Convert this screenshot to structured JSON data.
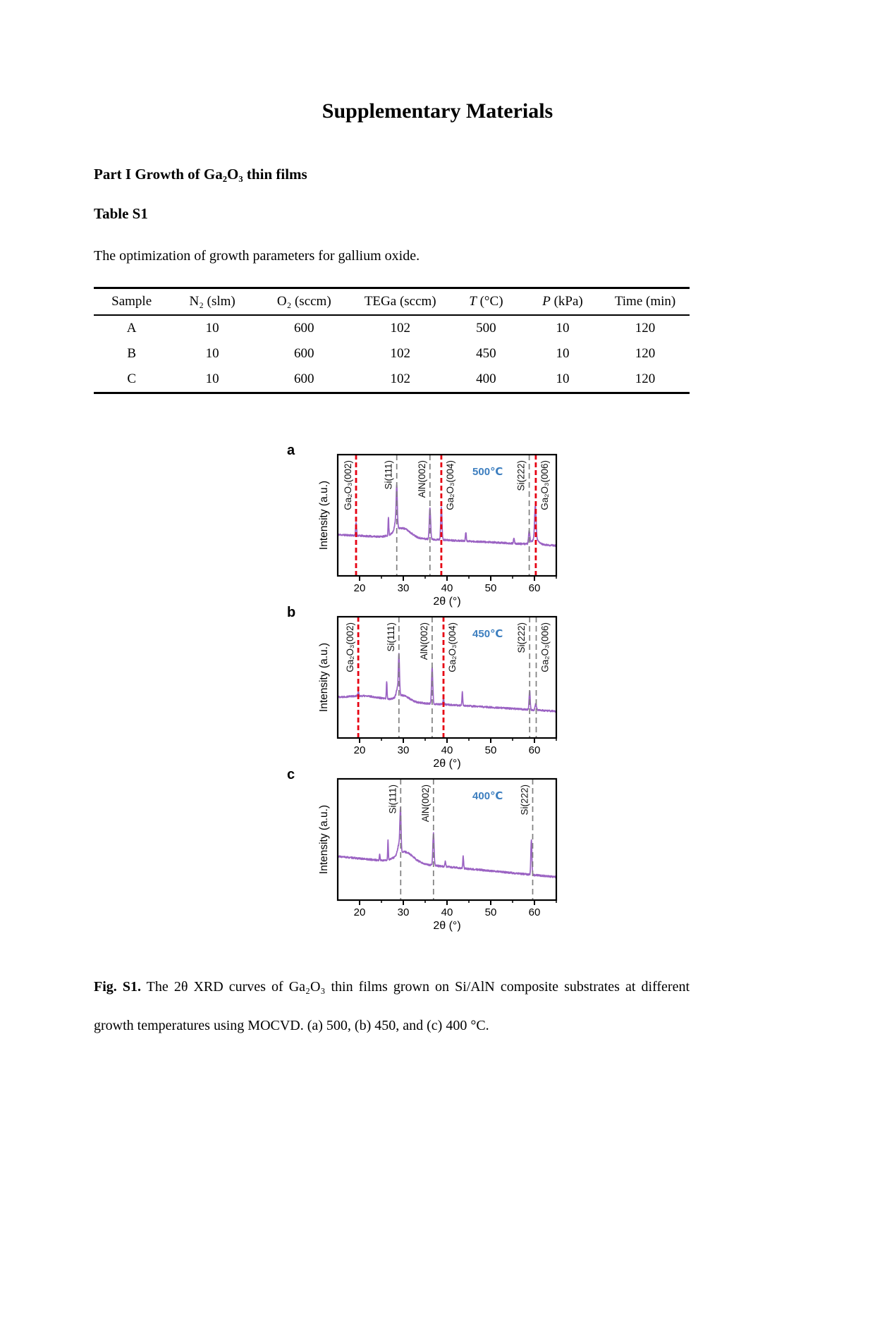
{
  "document": {
    "title": "Supplementary Materials",
    "section_heading": "Part I Growth of Ga₂O₃ thin films",
    "table_title": "Table S1",
    "table_description": "The optimization of growth parameters for gallium oxide.",
    "figure_caption_label": "Fig. S1.",
    "figure_caption_text": "The 2θ XRD curves of Ga₂O₃ thin films grown on Si/AlN composite substrates at different growth temperatures using MOCVD. (a) 500, (b) 450, and (c) 400 °C."
  },
  "table": {
    "headers": [
      {
        "label": "Sample"
      },
      {
        "label": "N₂ (slm)"
      },
      {
        "label": "O₂ (sccm)"
      },
      {
        "label": "TEGa (sccm)"
      },
      {
        "label": "T (°C)",
        "italic_first": true
      },
      {
        "label": "P (kPa)",
        "italic_first": true
      },
      {
        "label": "Time (min)"
      }
    ],
    "rows": [
      [
        "A",
        "10",
        "600",
        "102",
        "500",
        "10",
        "120"
      ],
      [
        "B",
        "10",
        "600",
        "102",
        "450",
        "10",
        "120"
      ],
      [
        "C",
        "10",
        "600",
        "102",
        "400",
        "10",
        "120"
      ]
    ]
  },
  "chart_data": [
    {
      "type": "line",
      "panel": "a",
      "temperature_label": "500℃",
      "temperature_color": "#3c7ebf",
      "xlabel": "2θ (°)",
      "ylabel": "Intensity (a.u.)",
      "xlim": [
        15,
        65
      ],
      "xticks": [
        20,
        30,
        40,
        50,
        60
      ],
      "minor_xticks": [
        25,
        35,
        45,
        55,
        65
      ],
      "grid": false,
      "curve_color": "#9b63c3",
      "line_colors": {
        "red": "#e60012",
        "gray": "#7f7f7f"
      },
      "reference_lines": [
        {
          "x": 19.2,
          "style": "red",
          "label": "Ga₂O₃(002)",
          "label_side": "left"
        },
        {
          "x": 28.5,
          "style": "gray",
          "label": "Si(111)",
          "label_side": "left"
        },
        {
          "x": 36.1,
          "style": "gray",
          "label": "AlN(002)",
          "label_side": "left"
        },
        {
          "x": 38.7,
          "style": "red",
          "label": "Ga₂O₃(004)",
          "label_side": "right"
        },
        {
          "x": 58.8,
          "style": "gray",
          "label": "Si(222)",
          "label_side": "left"
        },
        {
          "x": 60.3,
          "style": "red",
          "label": "Ga₂O₃(006)",
          "label_side": "right"
        }
      ],
      "peaks_format": "[two_theta_deg, height_fraction, sigma_deg]",
      "peaks": [
        [
          19.2,
          0.11,
          0.1
        ],
        [
          26.6,
          0.15,
          0.08
        ],
        [
          28.3,
          0.09,
          0.3
        ],
        [
          28.5,
          0.3,
          0.13
        ],
        [
          29.8,
          0.08,
          1.8
        ],
        [
          36.1,
          0.26,
          0.15
        ],
        [
          38.7,
          0.27,
          0.14
        ],
        [
          44.3,
          0.07,
          0.1
        ],
        [
          55.3,
          0.04,
          0.1
        ],
        [
          58.8,
          0.1,
          0.15
        ],
        [
          60.2,
          0.28,
          0.17
        ],
        [
          60.2,
          0.04,
          0.8
        ]
      ],
      "baseline": {
        "left": 0.34,
        "right": 0.25
      },
      "noise": 0.007,
      "seed": 11
    },
    {
      "type": "line",
      "panel": "b",
      "temperature_label": "450℃",
      "temperature_color": "#3c7ebf",
      "xlabel": "2θ (°)",
      "ylabel": "Intensity (a.u.)",
      "xlim": [
        15,
        65
      ],
      "xticks": [
        20,
        30,
        40,
        50,
        60
      ],
      "minor_xticks": [
        25,
        35,
        45,
        55,
        65
      ],
      "grid": false,
      "curve_color": "#9b63c3",
      "line_colors": {
        "red": "#e60012",
        "gray": "#7f7f7f"
      },
      "reference_lines": [
        {
          "x": 19.7,
          "style": "red",
          "label": "Ga₂O₃(002)",
          "label_side": "left"
        },
        {
          "x": 29.0,
          "style": "gray",
          "label": "Si(111)",
          "label_side": "left"
        },
        {
          "x": 36.6,
          "style": "gray",
          "label": "AlN(002)",
          "label_side": "left"
        },
        {
          "x": 39.2,
          "style": "red",
          "label": "Ga₂O₃(004)",
          "label_side": "right"
        },
        {
          "x": 58.9,
          "style": "gray",
          "label": "Si(222)",
          "label_side": "left"
        },
        {
          "x": 60.4,
          "style": "gray",
          "label": "Ga₂O₃(006)",
          "label_side": "right"
        }
      ],
      "peaks_format": "[two_theta_deg, height_fraction, sigma_deg]",
      "peaks": [
        [
          19.7,
          0.03,
          0.12
        ],
        [
          21.5,
          0.03,
          4.0
        ],
        [
          26.2,
          0.14,
          0.08
        ],
        [
          28.7,
          0.07,
          0.3
        ],
        [
          29.0,
          0.31,
          0.13
        ],
        [
          29.9,
          0.05,
          1.5
        ],
        [
          36.6,
          0.3,
          0.14
        ],
        [
          39.2,
          0.05,
          0.1
        ],
        [
          43.5,
          0.11,
          0.09
        ],
        [
          58.9,
          0.16,
          0.12
        ],
        [
          60.3,
          0.05,
          0.15
        ]
      ],
      "baseline": {
        "left": 0.33,
        "right": 0.22
      },
      "noise": 0.007,
      "seed": 22
    },
    {
      "type": "line",
      "panel": "c",
      "temperature_label": "400℃",
      "temperature_color": "#3c7ebf",
      "xlabel": "2θ (°)",
      "ylabel": "Intensity (a.u.)",
      "xlim": [
        15,
        65
      ],
      "xticks": [
        20,
        30,
        40,
        50,
        60
      ],
      "minor_xticks": [
        25,
        35,
        45,
        55,
        65
      ],
      "grid": false,
      "curve_color": "#9b63c3",
      "line_colors": {
        "red": "#e60012",
        "gray": "#7f7f7f"
      },
      "reference_lines": [
        {
          "x": 29.4,
          "style": "gray",
          "label": "Si(111)",
          "label_side": "left"
        },
        {
          "x": 36.9,
          "style": "gray",
          "label": "AlN(002)",
          "label_side": "left"
        },
        {
          "x": 59.6,
          "style": "gray",
          "label": "Si(222)",
          "label_side": "left"
        }
      ],
      "peaks_format": "[two_theta_deg, height_fraction, sigma_deg]",
      "peaks": [
        [
          24.6,
          0.05,
          0.08
        ],
        [
          26.5,
          0.16,
          0.08
        ],
        [
          29.0,
          0.08,
          0.3
        ],
        [
          29.35,
          0.33,
          0.13
        ],
        [
          30.4,
          0.09,
          1.9
        ],
        [
          36.9,
          0.27,
          0.14
        ],
        [
          39.6,
          0.04,
          0.1
        ],
        [
          43.7,
          0.1,
          0.09
        ],
        [
          59.3,
          0.29,
          0.12
        ]
      ],
      "baseline": {
        "left": 0.36,
        "right": 0.19
      },
      "noise": 0.007,
      "seed": 33
    }
  ]
}
